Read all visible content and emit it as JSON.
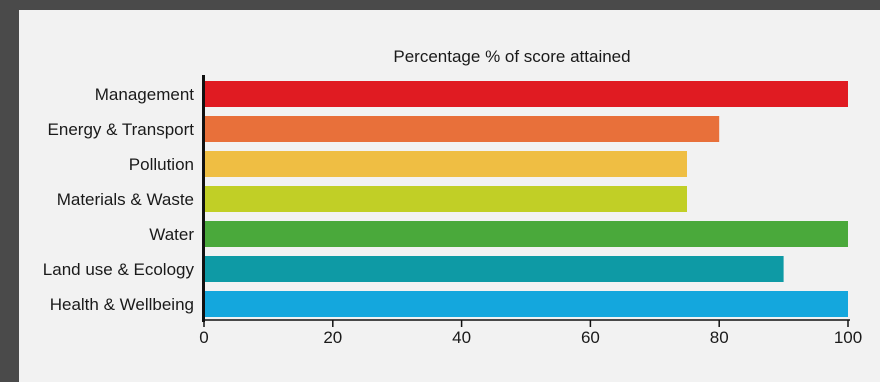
{
  "chart_data": {
    "type": "bar",
    "orientation": "horizontal",
    "title": "Percentage % of score attained",
    "xlabel": "",
    "ylabel": "",
    "xlim": [
      0,
      100
    ],
    "xticks": [
      0,
      20,
      40,
      60,
      80,
      100
    ],
    "grid": false,
    "categories": [
      "Management",
      "Energy & Transport",
      "Pollution",
      "Materials & Waste",
      "Water",
      "Land use & Ecology",
      "Health & Wellbeing"
    ],
    "values": [
      100,
      80,
      75,
      75,
      100,
      90,
      100
    ],
    "colors": [
      "#e01b22",
      "#e8703a",
      "#efbe43",
      "#c1cf26",
      "#4aa93b",
      "#0e9aa5",
      "#14a7dd"
    ]
  }
}
